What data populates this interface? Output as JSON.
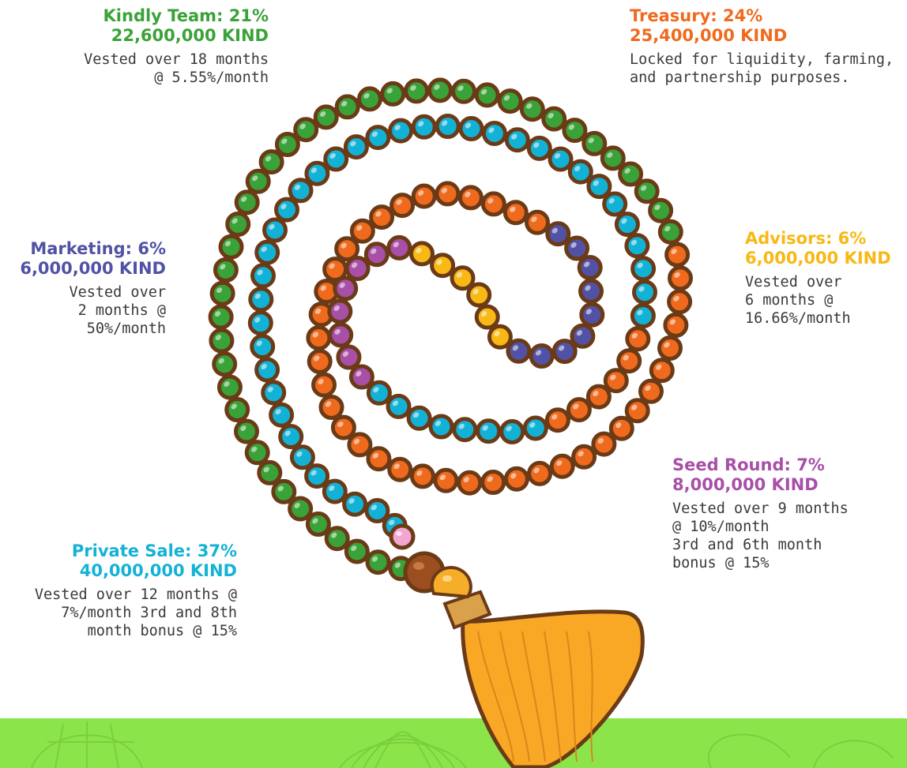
{
  "colors": {
    "kindly_team": "#3aa238",
    "treasury": "#f06a1e",
    "marketing": "#5152a6",
    "advisors": "#f8b815",
    "seed_round": "#a84fa8",
    "private_sale": "#13b2d6",
    "footer_band": "#8be54a",
    "bead_outline": "#6b3a16",
    "tassel": "#f9a825"
  },
  "allocations": {
    "kindly_team": {
      "title": "Kindly Team: 21%",
      "amount": "22,600,000 KIND",
      "description": "Vested over 18 months\n@ 5.55%/month"
    },
    "treasury": {
      "title": "Treasury: 24%",
      "amount": "25,400,000 KIND",
      "description": "Locked for liquidity, farming,\nand partnership purposes."
    },
    "marketing": {
      "title": "Marketing: 6%",
      "amount": "6,000,000 KIND",
      "description": "Vested over\n2 months @\n50%/month"
    },
    "advisors": {
      "title": "Advisors: 6%",
      "amount": "6,000,000 KIND",
      "description": "Vested over\n6 months @\n16.66%/month"
    },
    "seed_round": {
      "title": "Seed Round: 7%",
      "amount": "8,000,000 KIND",
      "description": "Vested over 9 months\n@ 10%/month\n3rd and 6th month\nbonus @ 15%"
    },
    "private_sale": {
      "title": "Private Sale: 37%",
      "amount": "40,000,000 KIND",
      "description": "Vested over 12 months @\n7%/month 3rd and 8th\nmonth bonus @ 15%"
    }
  }
}
